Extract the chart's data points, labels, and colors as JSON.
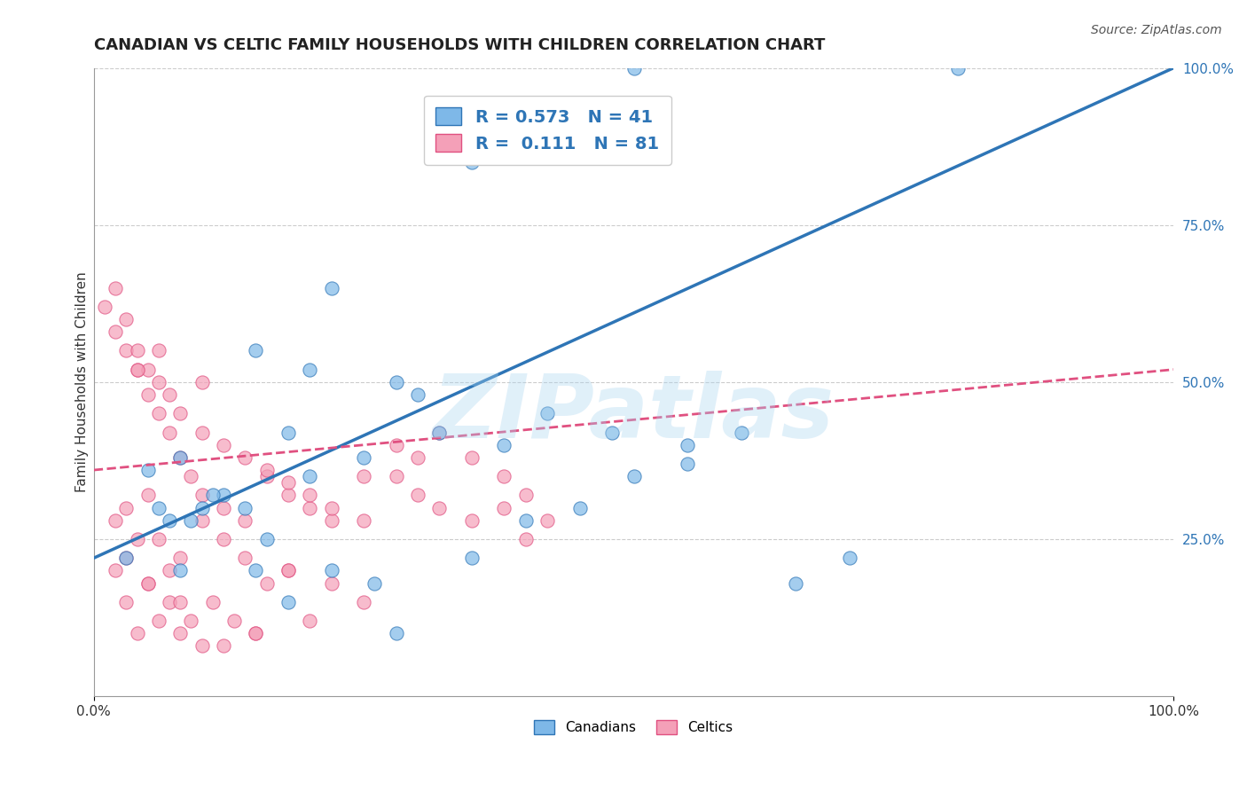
{
  "title": "CANADIAN VS CELTIC FAMILY HOUSEHOLDS WITH CHILDREN CORRELATION CHART",
  "source": "Source: ZipAtlas.com",
  "xlabel": "",
  "ylabel": "Family Households with Children",
  "xlim": [
    0,
    100
  ],
  "ylim": [
    0,
    100
  ],
  "xtick_labels": [
    "0.0%",
    "100.0%"
  ],
  "ytick_labels": [
    "25.0%",
    "50.0%",
    "75.0%",
    "100.0%"
  ],
  "ytick_positions": [
    25,
    50,
    75,
    100
  ],
  "watermark": "ZIPatlas",
  "legend_canadian_r": "R = 0.573",
  "legend_canadian_n": "N = 41",
  "legend_celtic_r": "R =  0.111",
  "legend_celtic_n": "N = 81",
  "canadian_color": "#7EB8E8",
  "celtic_color": "#F4A0B8",
  "canadian_line_color": "#2E75B6",
  "celtic_line_color": "#E05080",
  "legend_r_color": "#2E75B6",
  "canadian_scatter_x": [
    35,
    50,
    22,
    20,
    28,
    30,
    15,
    18,
    8,
    12,
    5,
    7,
    10,
    14,
    20,
    25,
    32,
    38,
    42,
    48,
    55,
    60,
    65,
    70,
    6,
    9,
    11,
    16,
    22,
    26,
    35,
    40,
    45,
    50,
    55,
    80,
    3,
    8,
    15,
    18,
    28
  ],
  "canadian_scatter_y": [
    85,
    100,
    65,
    52,
    50,
    48,
    55,
    42,
    38,
    32,
    36,
    28,
    30,
    30,
    35,
    38,
    42,
    40,
    45,
    42,
    40,
    42,
    18,
    22,
    30,
    28,
    32,
    25,
    20,
    18,
    22,
    28,
    30,
    35,
    37,
    100,
    22,
    20,
    20,
    15,
    10
  ],
  "celtic_scatter_x": [
    2,
    3,
    1,
    4,
    2,
    5,
    3,
    6,
    4,
    7,
    5,
    8,
    6,
    9,
    7,
    10,
    8,
    12,
    10,
    14,
    12,
    16,
    14,
    18,
    16,
    20,
    18,
    22,
    20,
    25,
    22,
    28,
    25,
    30,
    28,
    32,
    30,
    35,
    32,
    38,
    35,
    40,
    38,
    42,
    40,
    2,
    3,
    4,
    5,
    6,
    7,
    8,
    10,
    12,
    14,
    16,
    18,
    3,
    5,
    7,
    9,
    11,
    13,
    15,
    4,
    6,
    8,
    10,
    3,
    2,
    5,
    8,
    12,
    15,
    20,
    25,
    18,
    22,
    10,
    6,
    4
  ],
  "celtic_scatter_y": [
    58,
    55,
    62,
    52,
    65,
    48,
    60,
    45,
    55,
    42,
    52,
    38,
    50,
    35,
    48,
    32,
    45,
    30,
    42,
    28,
    40,
    35,
    38,
    32,
    36,
    30,
    34,
    28,
    32,
    35,
    30,
    40,
    28,
    38,
    35,
    42,
    32,
    38,
    30,
    35,
    28,
    32,
    30,
    28,
    25,
    20,
    22,
    25,
    18,
    25,
    20,
    22,
    28,
    25,
    22,
    18,
    20,
    15,
    18,
    15,
    12,
    15,
    12,
    10,
    10,
    12,
    10,
    8,
    30,
    28,
    32,
    15,
    8,
    10,
    12,
    15,
    20,
    18,
    50,
    55,
    52
  ],
  "background_color": "#FFFFFF",
  "grid_color": "#CCCCCC",
  "title_fontsize": 13,
  "axis_label_fontsize": 11,
  "tick_fontsize": 11,
  "legend_fontsize": 14,
  "source_fontsize": 10
}
